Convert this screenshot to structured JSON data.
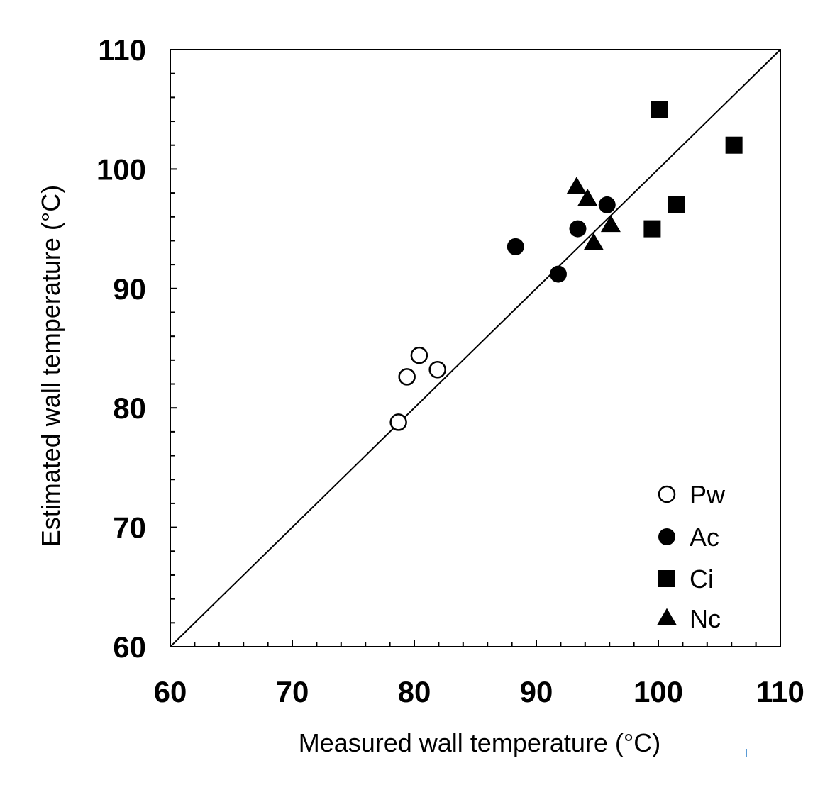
{
  "chart_data": {
    "type": "scatter",
    "title": "",
    "xlabel": "Measured wall temperature (°C)",
    "ylabel": "Estimated wall temperature (°C)",
    "xlim": [
      60,
      110
    ],
    "ylim": [
      60,
      110
    ],
    "xticks": [
      60,
      70,
      80,
      90,
      100,
      110
    ],
    "yticks": [
      60,
      70,
      80,
      90,
      100,
      110
    ],
    "minor_tick_step": 2,
    "grid": false,
    "legend_position": "bottom-right",
    "reference_line": {
      "label": "1:1 line",
      "x": [
        60,
        110
      ],
      "y": [
        60,
        110
      ]
    },
    "series": [
      {
        "name": "Pw",
        "marker": "open-circle",
        "points": [
          [
            78.7,
            78.8
          ],
          [
            79.4,
            82.6
          ],
          [
            80.4,
            84.4
          ],
          [
            81.9,
            83.2
          ]
        ]
      },
      {
        "name": "Ac",
        "marker": "filled-circle",
        "points": [
          [
            88.3,
            93.5
          ],
          [
            91.8,
            91.2
          ],
          [
            93.4,
            95.0
          ],
          [
            95.8,
            97.0
          ]
        ]
      },
      {
        "name": "Ci",
        "marker": "filled-square",
        "points": [
          [
            100.1,
            105.0
          ],
          [
            106.2,
            102.0
          ],
          [
            101.5,
            97.0
          ],
          [
            99.5,
            95.0
          ]
        ]
      },
      {
        "name": "Nc",
        "marker": "filled-triangle",
        "points": [
          [
            93.3,
            98.5
          ],
          [
            94.2,
            97.5
          ],
          [
            96.1,
            95.3
          ],
          [
            94.7,
            93.8
          ]
        ]
      }
    ]
  }
}
